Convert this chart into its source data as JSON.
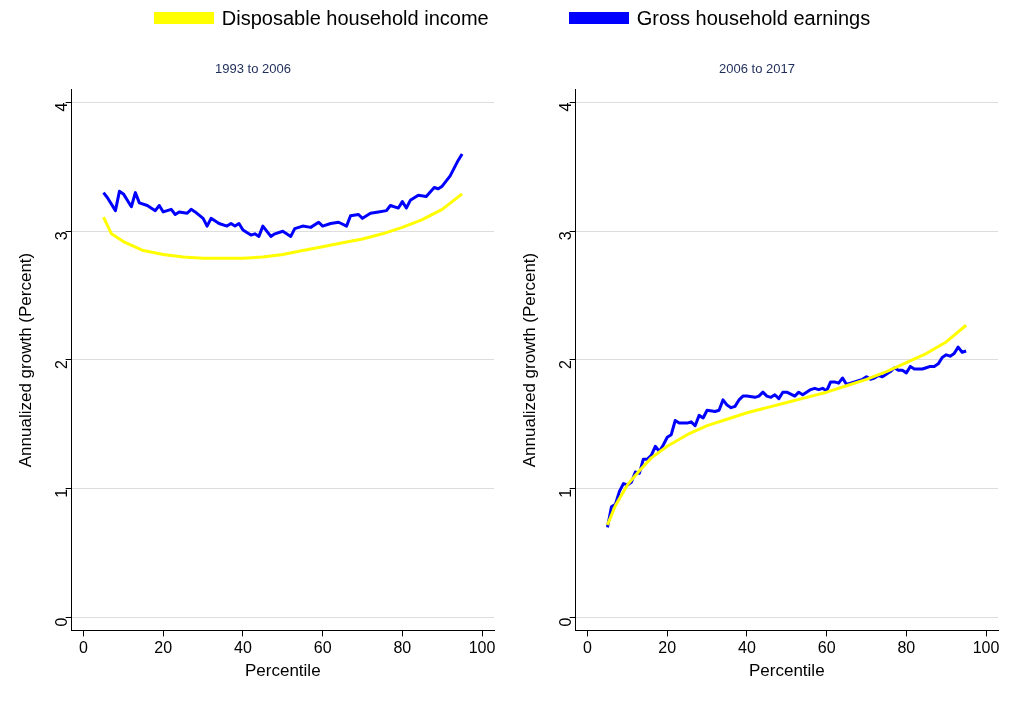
{
  "chart_data": [
    {
      "type": "line",
      "title": "1993 to 2006",
      "xlabel": "Percentile",
      "ylabel": "Annualized growth (Percent)",
      "xlim": [
        -3,
        103
      ],
      "xticks": [
        0,
        20,
        40,
        60,
        80,
        100
      ],
      "ylim": [
        -0.1,
        4.1
      ],
      "yticks": [
        0,
        1,
        2,
        3,
        4
      ],
      "grid": "y",
      "legend": "top",
      "series": [
        {
          "name": "Disposable household income",
          "color": "#ffff00",
          "x": [
            5,
            7,
            10,
            15,
            20,
            25,
            30,
            40,
            45,
            50,
            55,
            60,
            65,
            70,
            75,
            80,
            85,
            90,
            95
          ],
          "values": [
            3.11,
            2.98,
            2.92,
            2.85,
            2.82,
            2.8,
            2.79,
            2.79,
            2.8,
            2.82,
            2.85,
            2.88,
            2.91,
            2.94,
            2.98,
            3.03,
            3.09,
            3.17,
            3.29
          ]
        },
        {
          "name": "Gross household earnings",
          "color": "#0000ff",
          "x": [
            5,
            6,
            8,
            9,
            10,
            12,
            13,
            14,
            16,
            18,
            19,
            20,
            22,
            23,
            24,
            26,
            27,
            28,
            30,
            31,
            32,
            34,
            36,
            37,
            38,
            39,
            40,
            42,
            43,
            44,
            45,
            47,
            48,
            50,
            52,
            53,
            55,
            57,
            59,
            60,
            62,
            64,
            66,
            67,
            69,
            70,
            72,
            74,
            76,
            77,
            79,
            80,
            81,
            82,
            84,
            86,
            88,
            89,
            90,
            92,
            94,
            95
          ],
          "values": [
            3.3,
            3.26,
            3.16,
            3.31,
            3.29,
            3.19,
            3.3,
            3.22,
            3.2,
            3.16,
            3.2,
            3.15,
            3.17,
            3.13,
            3.15,
            3.14,
            3.17,
            3.15,
            3.1,
            3.04,
            3.1,
            3.06,
            3.04,
            3.06,
            3.04,
            3.06,
            3.01,
            2.97,
            2.98,
            2.96,
            3.04,
            2.96,
            2.98,
            3.0,
            2.96,
            3.02,
            3.04,
            3.03,
            3.07,
            3.04,
            3.06,
            3.07,
            3.04,
            3.12,
            3.13,
            3.1,
            3.14,
            3.15,
            3.16,
            3.2,
            3.18,
            3.23,
            3.18,
            3.24,
            3.28,
            3.27,
            3.34,
            3.33,
            3.35,
            3.43,
            3.55,
            3.6
          ]
        }
      ]
    },
    {
      "type": "line",
      "title": "2006 to 2017",
      "xlabel": "Percentile",
      "ylabel": "Annualized growth (Percent)",
      "xlim": [
        -3,
        103
      ],
      "xticks": [
        0,
        20,
        40,
        60,
        80,
        100
      ],
      "ylim": [
        -0.1,
        4.1
      ],
      "yticks": [
        0,
        1,
        2,
        3,
        4
      ],
      "grid": "y",
      "series": [
        {
          "color": "#ffff00",
          "x": [
            5,
            7,
            10,
            13,
            16,
            20,
            25,
            30,
            35,
            40,
            45,
            50,
            55,
            60,
            65,
            70,
            75,
            80,
            85,
            90,
            95
          ],
          "values": [
            0.72,
            0.87,
            1.03,
            1.14,
            1.24,
            1.33,
            1.42,
            1.49,
            1.54,
            1.59,
            1.63,
            1.67,
            1.71,
            1.75,
            1.8,
            1.85,
            1.91,
            1.98,
            2.05,
            2.14,
            2.27
          ]
        },
        {
          "color": "#0000ff",
          "x": [
            5,
            6,
            7,
            8,
            9,
            10,
            11,
            12,
            13,
            14,
            15,
            16,
            17,
            18,
            19,
            20,
            21,
            22,
            23,
            25,
            26,
            27,
            28,
            29,
            30,
            32,
            33,
            34,
            35,
            36,
            37,
            38,
            39,
            40,
            42,
            43,
            44,
            45,
            46,
            47,
            48,
            49,
            50,
            52,
            53,
            54,
            56,
            57,
            58,
            59,
            60,
            61,
            62,
            63,
            64,
            65,
            67,
            69,
            70,
            71,
            72,
            73,
            74,
            76,
            77,
            78,
            79,
            80,
            81,
            82,
            84,
            85,
            86,
            87,
            88,
            89,
            90,
            91,
            92,
            93,
            94,
            95
          ],
          "values": [
            0.7,
            0.86,
            0.88,
            0.98,
            1.04,
            1.03,
            1.05,
            1.13,
            1.12,
            1.23,
            1.23,
            1.26,
            1.33,
            1.29,
            1.34,
            1.4,
            1.42,
            1.53,
            1.51,
            1.51,
            1.52,
            1.49,
            1.57,
            1.55,
            1.61,
            1.6,
            1.61,
            1.69,
            1.65,
            1.63,
            1.64,
            1.69,
            1.72,
            1.72,
            1.71,
            1.72,
            1.75,
            1.72,
            1.71,
            1.73,
            1.7,
            1.75,
            1.75,
            1.72,
            1.75,
            1.73,
            1.77,
            1.78,
            1.77,
            1.78,
            1.76,
            1.83,
            1.83,
            1.82,
            1.86,
            1.81,
            1.83,
            1.85,
            1.87,
            1.85,
            1.86,
            1.88,
            1.87,
            1.91,
            1.94,
            1.92,
            1.92,
            1.9,
            1.95,
            1.93,
            1.93,
            1.94,
            1.95,
            1.95,
            1.97,
            2.02,
            2.04,
            2.03,
            2.05,
            2.1,
            2.06,
            2.07
          ]
        }
      ]
    }
  ]
}
